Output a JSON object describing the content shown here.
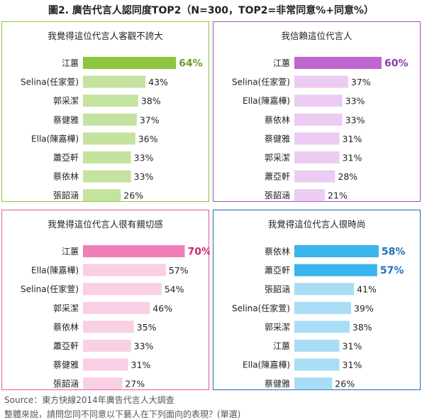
{
  "title": "圖2. 廣告代言人認同度TOP2（N=300，TOP2=非常同意%+同意%）",
  "source": "Source：東方快線2014年廣告代言人大調查",
  "note": "整體來說，請問您同不同意以下藝人在下列面向的表現？(單選)",
  "chart_data": [
    {
      "type": "bar",
      "title": "我覺得這位代言人客觀不誇大",
      "categories": [
        "江蕙",
        "Selina(任家萱)",
        "郭采潔",
        "蔡健雅",
        "Ella(陳嘉樺)",
        "蕭亞軒",
        "蔡依林",
        "張韶涵"
      ],
      "values": [
        64,
        43,
        38,
        37,
        36,
        33,
        33,
        26
      ],
      "value_labels": [
        "64%",
        "43%",
        "38%",
        "37%",
        "36%",
        "33%",
        "33%",
        "26%"
      ],
      "highlight_count": 1,
      "colors": {
        "border": "#8cc63f",
        "highlight": "#8dc63f",
        "bar": "#c5e3a0",
        "highlight_text": "#6a9e2a"
      }
    },
    {
      "type": "bar",
      "title": "我信賴這位代言人",
      "categories": [
        "江蕙",
        "Selina(任家萱)",
        "Ella(陳嘉樺)",
        "蔡依林",
        "蔡健雅",
        "郭采潔",
        "蕭亞軒",
        "張韶涵"
      ],
      "values": [
        60,
        37,
        33,
        33,
        31,
        31,
        28,
        21
      ],
      "value_labels": [
        "60%",
        "37%",
        "33%",
        "33%",
        "31%",
        "31%",
        "28%",
        "21%"
      ],
      "highlight_count": 1,
      "colors": {
        "border": "#9b4fb5",
        "highlight": "#c066d0",
        "bar": "#ecccf2",
        "highlight_text": "#8a3aa8"
      }
    },
    {
      "type": "bar",
      "title": "我覺得這位代言人很有親切感",
      "categories": [
        "江蕙",
        "Ella(陳嘉樺)",
        "Selina(任家萱)",
        "郭采潔",
        "蔡依林",
        "蕭亞軒",
        "蔡健雅",
        "張韶涵"
      ],
      "values": [
        70,
        57,
        54,
        46,
        35,
        33,
        31,
        27
      ],
      "value_labels": [
        "70%",
        "57%",
        "54%",
        "46%",
        "35%",
        "33%",
        "31%",
        "27%"
      ],
      "highlight_count": 1,
      "colors": {
        "border": "#e25a9a",
        "highlight": "#ef7fb6",
        "bar": "#f8cfe3",
        "highlight_text": "#d2266f"
      }
    },
    {
      "type": "bar",
      "title": "我覺得這位代言人很時尚",
      "categories": [
        "蔡依林",
        "蕭亞軒",
        "張韶涵",
        "Selina(任家萱)",
        "郭采潔",
        "江蕙",
        "Ella(陳嘉樺)",
        "蔡健雅"
      ],
      "values": [
        58,
        57,
        41,
        39,
        38,
        31,
        31,
        26
      ],
      "value_labels": [
        "58%",
        "57%",
        "41%",
        "39%",
        "38%",
        "31%",
        "31%",
        "26%"
      ],
      "highlight_count": 2,
      "colors": {
        "border": "#1f6bb0",
        "highlight": "#3ab4ec",
        "bar": "#a9ddf5",
        "highlight_text": "#1a73c0"
      }
    }
  ]
}
